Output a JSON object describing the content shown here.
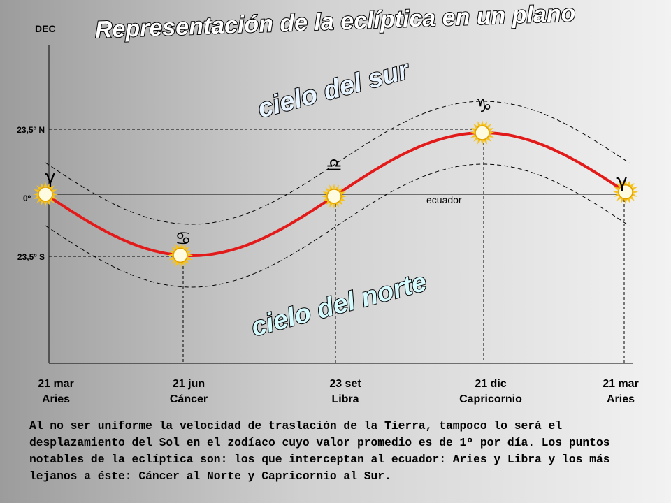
{
  "title": "Representación de la eclíptica en un plano",
  "axis_label": "DEC",
  "declination_labels": [
    "23,5º N",
    "0º",
    "23,5º S"
  ],
  "equator_label": "ecuador",
  "south_sky_label": "cielo del sur",
  "north_sky_label": "cielo del norte",
  "points": [
    {
      "date": "21 mar",
      "sign": "Aries",
      "symbol": "γ"
    },
    {
      "date": "21 jun",
      "sign": "Cáncer",
      "symbol": "♋"
    },
    {
      "date": "23 set",
      "sign": "Libra",
      "symbol": "♎"
    },
    {
      "date": "21 dic",
      "sign": "Capricornio",
      "symbol": "♑"
    },
    {
      "date": "21 mar",
      "sign": "Aries",
      "symbol": "γ"
    }
  ],
  "paragraph": "Al no ser uniforme la velocidad de traslación de la Tierra, tampoco lo será el desplazamiento del Sol en el zodíaco cuyo valor promedio es de 1º por día. Los puntos notables de la eclíptica son: los que interceptan al ecuador: Aries y Libra y los más lejanos a éste: Cáncer al Norte y Capricornio al Sur."
}
